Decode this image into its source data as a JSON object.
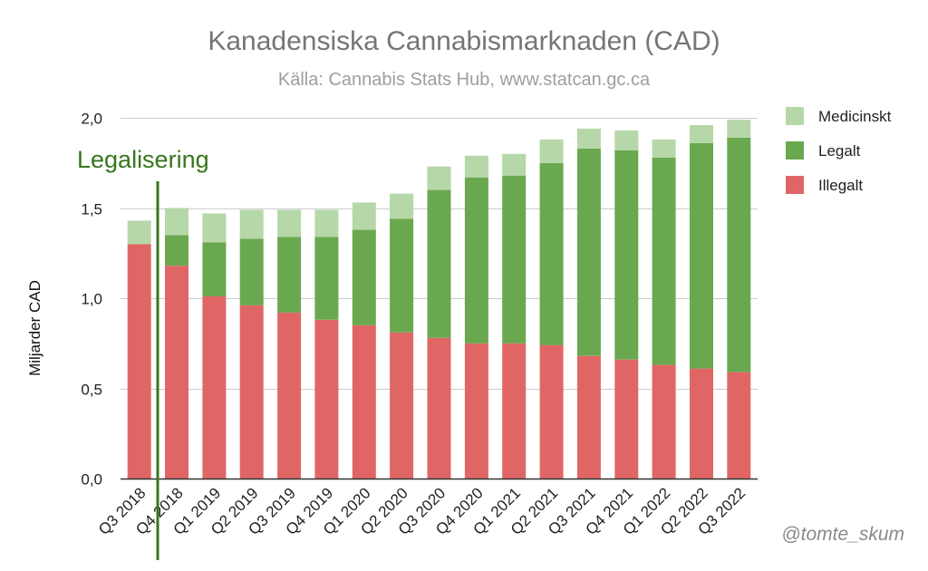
{
  "chart_data": {
    "type": "bar",
    "stacked": true,
    "title": "Kanadensiska Cannabismarknaden (CAD)",
    "subtitle": "Källa: Cannabis Stats Hub, www.statcan.gc.ca",
    "xlabel": "",
    "ylabel": "Miljarder CAD",
    "ylim": [
      0,
      2.0
    ],
    "yticks": [
      0,
      0.5,
      1.0,
      1.5,
      2.0
    ],
    "ytick_labels": [
      "0,0",
      "0,5",
      "1,0",
      "1,5",
      "2,0"
    ],
    "grid": true,
    "legend_position": "top-right",
    "categories": [
      "Q3 2018",
      "Q4 2018",
      "Q1 2019",
      "Q2 2019",
      "Q3 2019",
      "Q4 2019",
      "Q1 2020",
      "Q2 2020",
      "Q3 2020",
      "Q4 2020",
      "Q1 2021",
      "Q2 2021",
      "Q3 2021",
      "Q4 2021",
      "Q1 2022",
      "Q2 2022",
      "Q3 2022"
    ],
    "series": [
      {
        "name": "Illegalt",
        "color": "#e06666",
        "values": [
          1.3,
          1.18,
          1.01,
          0.96,
          0.92,
          0.88,
          0.85,
          0.81,
          0.78,
          0.75,
          0.75,
          0.74,
          0.68,
          0.66,
          0.63,
          0.61,
          0.59
        ]
      },
      {
        "name": "Legalt",
        "color": "#6aa84f",
        "values": [
          0.0,
          0.17,
          0.3,
          0.37,
          0.42,
          0.46,
          0.53,
          0.63,
          0.82,
          0.92,
          0.93,
          1.01,
          1.15,
          1.16,
          1.15,
          1.25,
          1.3
        ]
      },
      {
        "name": "Medicinskt",
        "color": "#b6d7a8",
        "values": [
          0.13,
          0.15,
          0.16,
          0.16,
          0.15,
          0.15,
          0.15,
          0.14,
          0.13,
          0.12,
          0.12,
          0.13,
          0.11,
          0.11,
          0.1,
          0.1,
          0.1
        ]
      }
    ],
    "legend_order": [
      "Medicinskt",
      "Legalt",
      "Illegalt"
    ],
    "annotation": {
      "text": "Legalisering",
      "color": "#38761d",
      "between_categories": [
        "Q3 2018",
        "Q4 2018"
      ]
    },
    "credit": "@tomte_skum"
  }
}
